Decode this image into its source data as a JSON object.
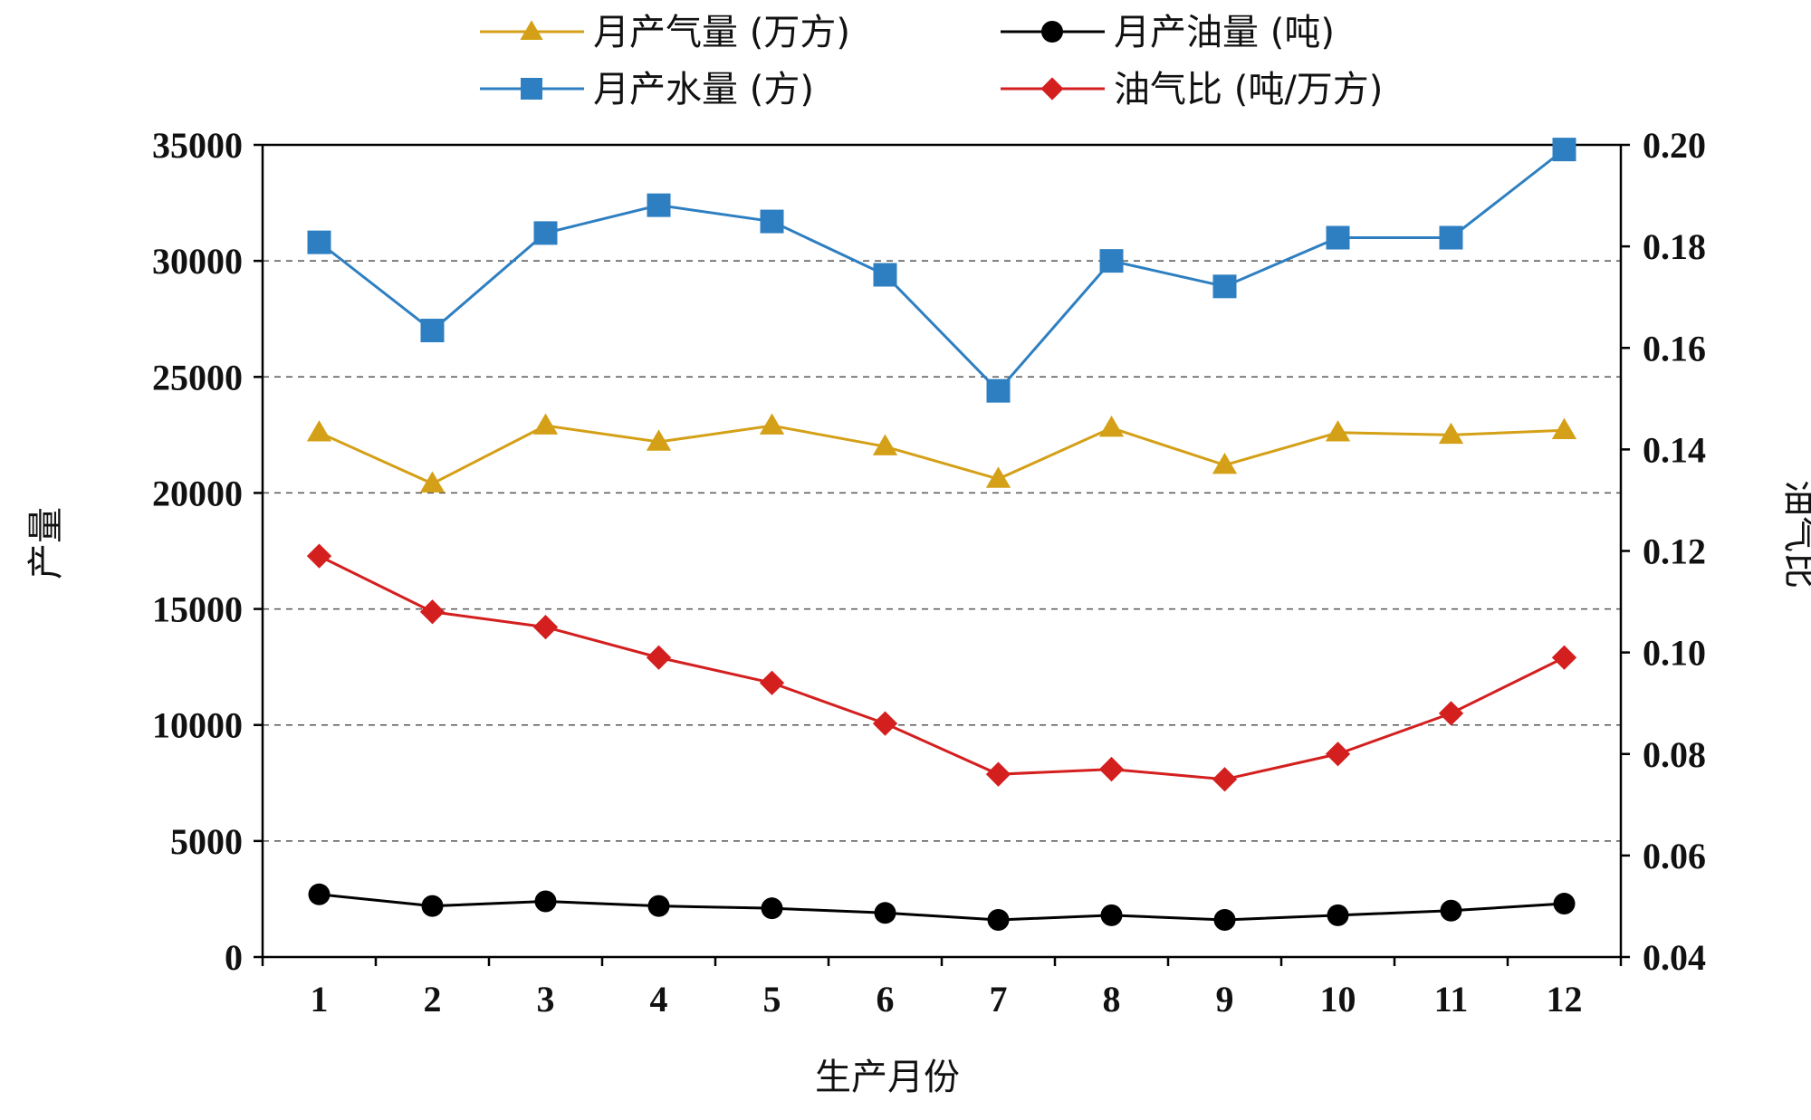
{
  "chart_data": {
    "type": "line",
    "title": "",
    "xlabel": "生产月份",
    "ylabel": "产量",
    "y2label": "油气比",
    "categories": [
      "1",
      "2",
      "3",
      "4",
      "5",
      "6",
      "7",
      "8",
      "9",
      "10",
      "11",
      "12"
    ],
    "ylim": [
      0,
      35000
    ],
    "y_ticks": [
      "0",
      "5000",
      "10000",
      "15000",
      "20000",
      "25000",
      "30000",
      "35000"
    ],
    "y2lim": [
      0.04,
      0.2
    ],
    "y2_ticks": [
      "0.04",
      "0.06",
      "0.08",
      "0.10",
      "0.12",
      "0.14",
      "0.16",
      "0.18",
      "0.20"
    ],
    "grid": "horizontal-dashed",
    "legend_position": "top",
    "series": [
      {
        "name": "月产气量 (万方)",
        "axis": "left",
        "color": "#D4A017",
        "marker": "triangle",
        "values": [
          22600,
          20400,
          22900,
          22200,
          22900,
          22000,
          20600,
          22800,
          21200,
          22600,
          22500,
          22700
        ]
      },
      {
        "name": "月产油量 (吨)",
        "axis": "left",
        "color": "#000000",
        "marker": "circle",
        "values": [
          2700,
          2200,
          2400,
          2200,
          2100,
          1900,
          1600,
          1800,
          1600,
          1800,
          2000,
          2300
        ]
      },
      {
        "name": "月产水量 (方)",
        "axis": "left",
        "color": "#2E7FC1",
        "marker": "square",
        "values": [
          30800,
          27000,
          31200,
          32400,
          31700,
          29400,
          24400,
          30000,
          28900,
          31000,
          31000,
          34800
        ]
      },
      {
        "name": "油气比 (吨/万方)",
        "axis": "right",
        "color": "#D41F1F",
        "marker": "diamond",
        "values": [
          0.119,
          0.108,
          0.105,
          0.099,
          0.094,
          0.086,
          0.076,
          0.077,
          0.075,
          0.08,
          0.088,
          0.099
        ]
      }
    ]
  }
}
